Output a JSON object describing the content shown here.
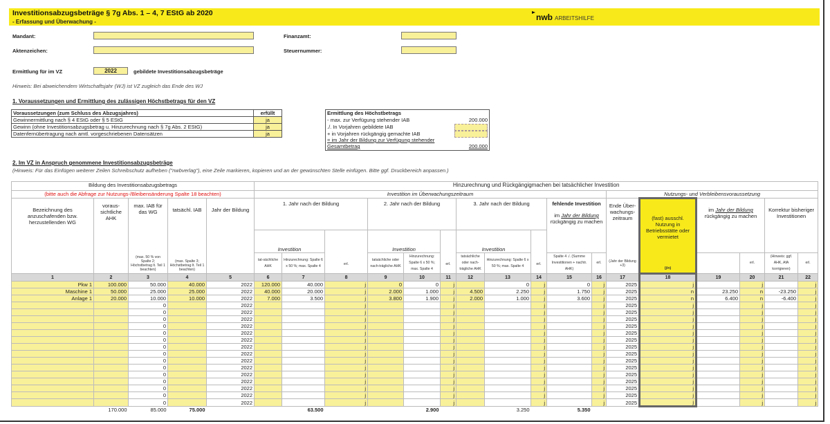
{
  "header": {
    "title": "Investitionsabzugsbeträge § 7g Abs. 1 – 4, 7 EStG ab 2020",
    "subtitle": "- Erfassung und Überwachung -",
    "logo_brand": "nwb",
    "logo_text": "ARBEITSHILFE",
    "accent": "#f8ea1a"
  },
  "form": {
    "mandant_label": "Mandant:",
    "mandant_value": "",
    "finanzamt_label": "Finanzamt:",
    "finanzamt_value": "",
    "aktenzeichen_label": "Aktenzeichen:",
    "aktenzeichen_value": "",
    "steuernummer_label": "Steuernummer:",
    "steuernummer_value": "",
    "vz_label": "Ermittlung für im VZ",
    "vz_value": "2022",
    "vz_suffix": "gebildete Investitionsabzugsbeträge",
    "hint": "Hinweis: Bei abweichendem Wirtschaftsjahr (WJ) ist VZ zugleich das Ende des WJ"
  },
  "section1": {
    "heading": "1. Voraussetzungen und Ermittlung des zulässigen Höchstbetrags für den VZ",
    "prereq_header": "Voraussetzungen (zum Schluss des Abzugsjahres)",
    "prereq_col": "erfüllt",
    "prereqs": [
      {
        "label": "Gewinnermittlung nach § 4 EStG oder § 5 EStG",
        "value": "ja"
      },
      {
        "label": "Gewinn (ohne Investitionsabzugsbetrag u. Hinzurechnung nach § 7g Abs. 2 EStG)",
        "value": "ja"
      },
      {
        "label": "Datenfernübertragung nach amtl. vorgeschriebenen Datensätzen",
        "value": "ja"
      }
    ],
    "max": {
      "header": "Ermittlung des Höchstbetrags",
      "row1_label": "- max. zur Verfügung stehender IAB",
      "row1_value": "200.000",
      "row2_label": "./. In Vorjahren gebildete IAB",
      "row2_value": "",
      "row3_label": "+ in Vorjahren rückgängig gemachte IAB",
      "row3_value": "",
      "row4_label": "= im Jahr der Bildung zur Verfügung stehender",
      "row5_label": "Gesamtbetrag",
      "row5_value": "200.000"
    }
  },
  "section2": {
    "heading": "2. Im VZ  in Anspruch genommene Investitionsabzugsbeträge",
    "hint": "(Hinweis: Für das Einfügen weiterer Zeilen Schreibschutz aufheben (\"nwbverlag\"), eine Zeile markieren, kopieren und an der gewünschten Stelle einfügen. Bitte ggf. Druckbereich anpassen.)"
  },
  "table": {
    "group_left": "Bildung des Investitionsabzugsbetrags",
    "group_left_note": "(bitte auch die Abfrage zur Nutzungs-/Bleibensänderung Spalte 18 beachten)",
    "group_right": "Hinzurechnung und Rückgängigmachen bei tatsächlicher Investition",
    "sub_invest": "Investition im Überwachungszeitraum",
    "sub_usage": "Nutzungs- und Verbleibensvoraussetzung",
    "h1": "Bezeichnung des anzuschafenden bzw. herzustellenden WG",
    "h2": "voraus-sichtliche AHK",
    "h3": "max. IAB für das WG",
    "h3_note": "(max. 50 % von Spalte 2; Höchstbetrag lt. Teil 1 beachten)",
    "h4": "tatsächl. IAB",
    "h4_note": "(max. Spalte 3; Höchstbetrag lt. Teil 1 beachten)",
    "h5": "Jahr der Bildung",
    "y1": "1. Jahr nach der Bildung",
    "y2": "2. Jahr nach der Bildung",
    "y3": "3. Jahr nach der Bildung",
    "investition": "Investition",
    "h6": "tat-sächliche AHK",
    "h7": "Hinzurechnung: Spalte 6 x 50 %; max. Spalte 4",
    "h9": "tatsächliche oder nach-trägliche AHK",
    "h10": "Hinzurechnung: Spalte 6 x 50 %; max. Spalte 4",
    "h12": "tatsächliche oder nach-trägliche AHK",
    "h13": "Hinzurechnung: Spalte 6 x 50 %; max. Spalte 4",
    "h15_title": "fehlende Investition",
    "h15_sub_pre": "im",
    "h15_sub_link": "Jahr der Bildung",
    "h15_sub_post": "rückgängig zu machen",
    "h15_note": "Spalte 4 ./. (Summe Investitionen + nachtr. AHK)",
    "h17": "Ende Über-wachungs-zeitraum",
    "h17_note": "(Jahr der Bildung +3)",
    "h18": "(fast) ausschl. Nutzung in Betriebsstätte oder vermietet",
    "h18_note": "(j/n)",
    "h19_pre": "im",
    "h19_link": "Jahr der Bildung",
    "h19_post": "rückgängig zu machen",
    "h21": "Korrektur bisheriger Investitionen",
    "h21_note": "(Hinweis: ggf. AHK, AfA korrigieren)",
    "erl": "erl.",
    "col_numbers": [
      "1",
      "2",
      "3",
      "4",
      "5",
      "6",
      "7",
      "8",
      "9",
      "10",
      "11",
      "12",
      "13",
      "14",
      "15",
      "16",
      "17",
      "18",
      "19",
      "20",
      "21",
      "22"
    ],
    "rows": [
      [
        "Pkw 1",
        "100.000",
        "50.000",
        "40.000",
        "2022",
        "120.000",
        "40.000",
        "j",
        "0",
        "0",
        "j",
        "",
        "0",
        "j",
        "0",
        "j",
        "2025",
        "j",
        "",
        "j",
        "",
        "j"
      ],
      [
        "Maschine 1",
        "50.000",
        "25.000",
        "25.000",
        "2022",
        "40.000",
        "20.000",
        "j",
        "2.000",
        "1.000",
        "j",
        "4.500",
        "2.250",
        "j",
        "1.750",
        "j",
        "2025",
        "n",
        "23.250",
        "n",
        "-23.250",
        "j"
      ],
      [
        "Anlage 1",
        "20.000",
        "10.000",
        "10.000",
        "2022",
        "7.000",
        "3.500",
        "j",
        "3.800",
        "1.900",
        "j",
        "2.000",
        "1.000",
        "j",
        "3.600",
        "j",
        "2025",
        "n",
        "6.400",
        "n",
        "-6.400",
        "j"
      ],
      [
        "",
        "",
        "0",
        "",
        "2022",
        "",
        "",
        "j",
        "",
        "",
        "j",
        "",
        "",
        "j",
        "",
        "j",
        "2025",
        "j",
        "",
        "j",
        "",
        "j"
      ],
      [
        "",
        "",
        "0",
        "",
        "2022",
        "",
        "",
        "j",
        "",
        "",
        "j",
        "",
        "",
        "j",
        "",
        "j",
        "2025",
        "j",
        "",
        "j",
        "",
        "j"
      ],
      [
        "",
        "",
        "0",
        "",
        "2022",
        "",
        "",
        "j",
        "",
        "",
        "j",
        "",
        "",
        "j",
        "",
        "j",
        "2025",
        "j",
        "",
        "j",
        "",
        "j"
      ],
      [
        "",
        "",
        "0",
        "",
        "2022",
        "",
        "",
        "j",
        "",
        "",
        "j",
        "",
        "",
        "j",
        "",
        "j",
        "2025",
        "j",
        "",
        "j",
        "",
        "j"
      ],
      [
        "",
        "",
        "0",
        "",
        "2022",
        "",
        "",
        "j",
        "",
        "",
        "j",
        "",
        "",
        "j",
        "",
        "j",
        "2025",
        "j",
        "",
        "j",
        "",
        "j"
      ],
      [
        "",
        "",
        "0",
        "",
        "2022",
        "",
        "",
        "j",
        "",
        "",
        "j",
        "",
        "",
        "j",
        "",
        "j",
        "2025",
        "j",
        "",
        "j",
        "",
        "j"
      ],
      [
        "",
        "",
        "0",
        "",
        "2022",
        "",
        "",
        "j",
        "",
        "",
        "j",
        "",
        "",
        "j",
        "",
        "j",
        "2025",
        "j",
        "",
        "j",
        "",
        "j"
      ],
      [
        "",
        "",
        "0",
        "",
        "2022",
        "",
        "",
        "j",
        "",
        "",
        "j",
        "",
        "",
        "j",
        "",
        "j",
        "2025",
        "j",
        "",
        "j",
        "",
        "j"
      ],
      [
        "",
        "",
        "0",
        "",
        "2022",
        "",
        "",
        "j",
        "",
        "",
        "j",
        "",
        "",
        "j",
        "",
        "j",
        "2025",
        "j",
        "",
        "j",
        "",
        "j"
      ],
      [
        "",
        "",
        "0",
        "",
        "2022",
        "",
        "",
        "j",
        "",
        "",
        "j",
        "",
        "",
        "j",
        "",
        "j",
        "2025",
        "j",
        "",
        "j",
        "",
        "j"
      ],
      [
        "",
        "",
        "0",
        "",
        "2022",
        "",
        "",
        "j",
        "",
        "",
        "j",
        "",
        "",
        "j",
        "",
        "j",
        "2025",
        "j",
        "",
        "j",
        "",
        "j"
      ],
      [
        "",
        "",
        "0",
        "",
        "2022",
        "",
        "",
        "j",
        "",
        "",
        "j",
        "",
        "",
        "j",
        "",
        "j",
        "2025",
        "j",
        "",
        "j",
        "",
        "j"
      ],
      [
        "",
        "",
        "0",
        "",
        "2022",
        "",
        "",
        "j",
        "",
        "",
        "j",
        "",
        "",
        "j",
        "",
        "j",
        "2025",
        "j",
        "",
        "j",
        "",
        "j"
      ],
      [
        "",
        "",
        "0",
        "",
        "2022",
        "",
        "",
        "j",
        "",
        "",
        "j",
        "",
        "",
        "j",
        "",
        "j",
        "2025",
        "j",
        "",
        "j",
        "",
        "j"
      ],
      [
        "",
        "",
        "0",
        "",
        "2022",
        "",
        "",
        "j",
        "",
        "",
        "j",
        "",
        "",
        "j",
        "",
        "j",
        "2025",
        "j",
        "",
        "j",
        "",
        "j"
      ]
    ],
    "totals": [
      "",
      "170.000",
      "85.000",
      "75.000",
      "",
      "",
      "63.500",
      "",
      "",
      "2.900",
      "",
      "",
      "3.250",
      "",
      "5.350",
      "",
      "",
      "",
      "",
      "",
      "",
      ""
    ]
  }
}
